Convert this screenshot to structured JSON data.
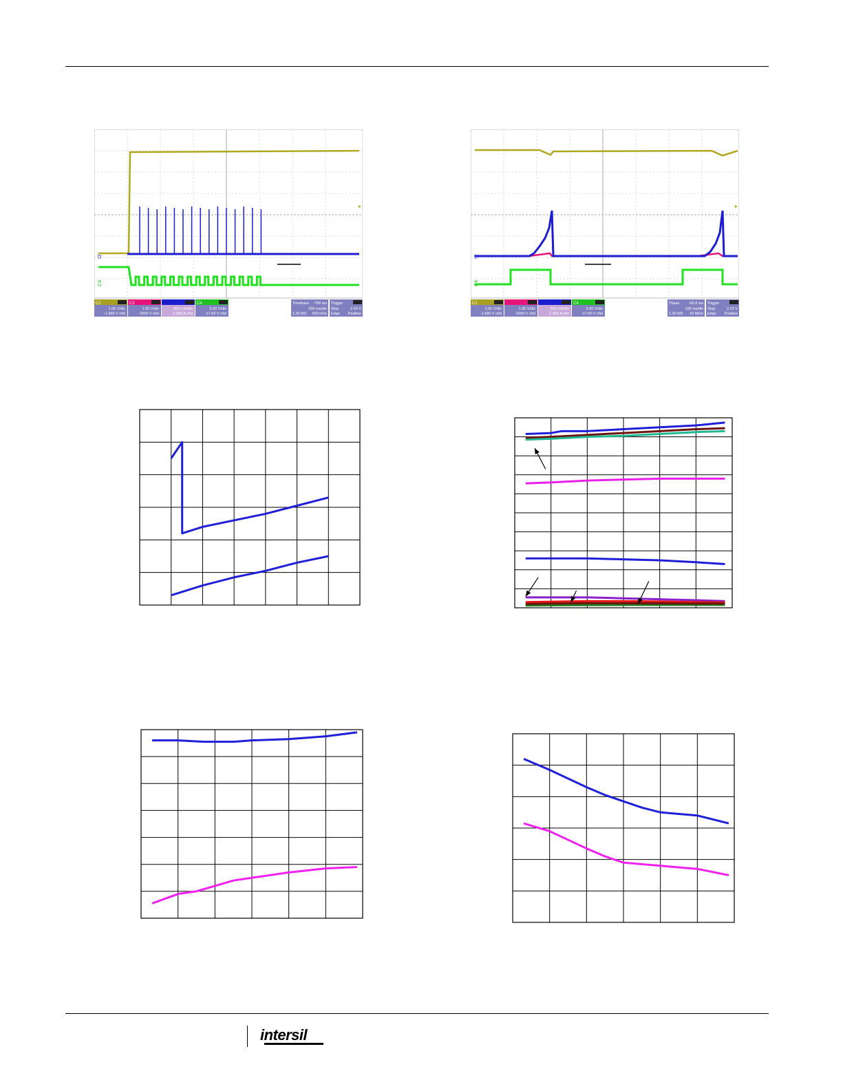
{
  "footer": {
    "logo_text": "intersil"
  },
  "scopes": [
    {
      "id": "scope-left",
      "channels": [
        {
          "tag": "C1",
          "tag_color": "#a8a020",
          "scale": "1.00 V/div",
          "offset": "-1.990 V ofst"
        },
        {
          "tag": "C2",
          "tag_color": "#e8147c",
          "scale": "1.00 V/div",
          "offset": "-2000 V ofst"
        },
        {
          "tag": "",
          "tag_color": "#1c1cd0",
          "scale": "500 mA/div",
          "offset": "-1.000 A ofst"
        },
        {
          "tag": "C4",
          "tag_color": "#20c020",
          "scale": "5.00 V/div",
          "offset": "-17.60 V ofst"
        }
      ],
      "timebase": {
        "label": "Timebase",
        "delay": "-756 ms",
        "scale": "200 ms/div",
        "points": "1.00 MS",
        "rate": "500 kS/s"
      },
      "trigger": {
        "label": "Trigger",
        "mode": "Stop",
        "level": "2.24 V",
        "type": "Edge",
        "slope": "Positive"
      }
    },
    {
      "id": "scope-right",
      "channels": [
        {
          "tag": "C1",
          "tag_color": "#a8a020",
          "scale": "1.00 V/div",
          "offset": "-1.990 V ofst"
        },
        {
          "tag": "",
          "tag_color": "#e8147c",
          "scale": "1.00 V/div",
          "offset": "-2000 V ofst"
        },
        {
          "tag": "",
          "tag_color": "#1c1cd0",
          "scale": "500 mA/div",
          "offset": "-1.000 A ofst"
        },
        {
          "tag": "C4",
          "tag_color": "#20c020",
          "scale": "5.00 V/div",
          "offset": "-17.60 V ofst"
        }
      ],
      "timebase": {
        "label": "Tbase",
        "delay": "-55.8 ms",
        "scale": "100 ms/div",
        "points": "1.00 MS",
        "rate": "10 MS/s"
      },
      "trigger": {
        "label": "Trigger",
        "mode": "Stop",
        "level": "2.24 V",
        "type": "Edge",
        "slope": "Positive"
      }
    }
  ],
  "chart_data": [
    {
      "type": "line",
      "id": "chart-mid-left",
      "grid": true,
      "xlim": [
        0,
        7
      ],
      "ylim": [
        0,
        6
      ],
      "series": [
        {
          "color": "#1f1fd8",
          "points": [
            [
              1,
              4.5
            ],
            [
              1.35,
              5
            ],
            [
              1.35,
              2.2
            ],
            [
              2,
              2.4
            ],
            [
              3,
              2.6
            ],
            [
              4,
              2.8
            ],
            [
              5,
              3.05
            ],
            [
              6,
              3.3
            ]
          ]
        },
        {
          "color": "#1f1fd8",
          "points": [
            [
              1,
              0.3
            ],
            [
              2,
              0.6
            ],
            [
              3,
              0.85
            ],
            [
              4,
              1.05
            ],
            [
              5,
              1.3
            ],
            [
              6,
              1.5
            ]
          ]
        }
      ]
    },
    {
      "type": "line",
      "id": "chart-mid-right",
      "grid": true,
      "xlim": [
        0,
        6
      ],
      "ylim": [
        0,
        10
      ],
      "series": [
        {
          "color": "#1f1fd8",
          "points": [
            [
              0.3,
              9.15
            ],
            [
              1,
              9.2
            ],
            [
              1.3,
              9.3
            ],
            [
              2,
              9.3
            ],
            [
              3,
              9.4
            ],
            [
              4,
              9.5
            ],
            [
              5,
              9.6
            ],
            [
              5.8,
              9.75
            ]
          ]
        },
        {
          "color": "#6b1410",
          "points": [
            [
              0.3,
              8.95
            ],
            [
              1,
              9.0
            ],
            [
              2,
              9.1
            ],
            [
              3,
              9.2
            ],
            [
              4,
              9.3
            ],
            [
              5,
              9.4
            ],
            [
              5.8,
              9.45
            ]
          ]
        },
        {
          "color": "#20b890",
          "points": [
            [
              0.3,
              8.85
            ],
            [
              1,
              8.9
            ],
            [
              2,
              9.0
            ],
            [
              3,
              9.05
            ],
            [
              4,
              9.15
            ],
            [
              5,
              9.25
            ],
            [
              5.8,
              9.3
            ]
          ]
        },
        {
          "color": "#e820e8",
          "points": [
            [
              0.3,
              6.55
            ],
            [
              1,
              6.6
            ],
            [
              2,
              6.7
            ],
            [
              3,
              6.75
            ],
            [
              4,
              6.8
            ],
            [
              5,
              6.8
            ],
            [
              5.8,
              6.8
            ]
          ]
        },
        {
          "color": "#1f1fd8",
          "points": [
            [
              0.3,
              2.6
            ],
            [
              1,
              2.6
            ],
            [
              2,
              2.6
            ],
            [
              3,
              2.55
            ],
            [
              4,
              2.5
            ],
            [
              5,
              2.4
            ],
            [
              5.8,
              2.3
            ]
          ]
        },
        {
          "color": "#8a20c8",
          "points": [
            [
              0.3,
              0.55
            ],
            [
              1,
              0.55
            ],
            [
              2,
              0.55
            ],
            [
              3,
              0.5
            ],
            [
              4,
              0.45
            ],
            [
              5,
              0.4
            ],
            [
              5.8,
              0.35
            ]
          ]
        },
        {
          "color": "#e81414",
          "points": [
            [
              0.3,
              0.3
            ],
            [
              1,
              0.32
            ],
            [
              2,
              0.35
            ],
            [
              3,
              0.35
            ],
            [
              4,
              0.33
            ],
            [
              5,
              0.3
            ],
            [
              5.8,
              0.28
            ]
          ]
        },
        {
          "color": "#208020",
          "points": [
            [
              0.3,
              0.12
            ],
            [
              1,
              0.13
            ],
            [
              2,
              0.14
            ],
            [
              3,
              0.15
            ],
            [
              4,
              0.15
            ],
            [
              5,
              0.15
            ],
            [
              5.8,
              0.15
            ]
          ]
        },
        {
          "color": "#6b1410",
          "points": [
            [
              0.3,
              0.2
            ],
            [
              1,
              0.22
            ],
            [
              2,
              0.24
            ],
            [
              3,
              0.24
            ],
            [
              4,
              0.23
            ],
            [
              5,
              0.22
            ],
            [
              5.8,
              0.22
            ]
          ]
        }
      ],
      "arrows": [
        {
          "from": [
            0.85,
            7.3
          ],
          "to": [
            0.55,
            8.4
          ]
        },
        {
          "from": [
            0.65,
            1.6
          ],
          "to": [
            0.3,
            0.6
          ]
        },
        {
          "from": [
            1.7,
            0.9
          ],
          "to": [
            1.55,
            0.3
          ]
        },
        {
          "from": [
            3.7,
            1.4
          ],
          "to": [
            3.4,
            0.2
          ]
        }
      ]
    },
    {
      "type": "line",
      "id": "chart-bottom-left",
      "grid": true,
      "xlim": [
        0,
        6
      ],
      "ylim": [
        0,
        7
      ],
      "series": [
        {
          "color": "#1f1fd8",
          "points": [
            [
              0.3,
              6.6
            ],
            [
              1,
              6.6
            ],
            [
              1.7,
              6.55
            ],
            [
              2.5,
              6.55
            ],
            [
              3,
              6.6
            ],
            [
              4,
              6.65
            ],
            [
              5,
              6.75
            ],
            [
              5.85,
              6.9
            ]
          ]
        },
        {
          "color": "#f020f0",
          "points": [
            [
              0.3,
              0.55
            ],
            [
              1,
              0.9
            ],
            [
              1.5,
              1.0
            ],
            [
              2,
              1.2
            ],
            [
              2.5,
              1.4
            ],
            [
              3,
              1.5
            ],
            [
              4,
              1.7
            ],
            [
              5,
              1.85
            ],
            [
              5.85,
              1.9
            ]
          ]
        }
      ]
    },
    {
      "type": "line",
      "id": "chart-bottom-right",
      "grid": true,
      "xlim": [
        0,
        6
      ],
      "ylim": [
        0,
        6
      ],
      "series": [
        {
          "color": "#1f1fd8",
          "points": [
            [
              0.3,
              5.2
            ],
            [
              1,
              4.85
            ],
            [
              2,
              4.3
            ],
            [
              2.5,
              4.05
            ],
            [
              3,
              3.85
            ],
            [
              3.5,
              3.65
            ],
            [
              4,
              3.5
            ],
            [
              4.5,
              3.45
            ],
            [
              5,
              3.4
            ],
            [
              5.85,
              3.15
            ]
          ]
        },
        {
          "color": "#f020f0",
          "points": [
            [
              0.3,
              3.15
            ],
            [
              1,
              2.9
            ],
            [
              2,
              2.35
            ],
            [
              2.5,
              2.1
            ],
            [
              3,
              1.9
            ],
            [
              3.5,
              1.85
            ],
            [
              4,
              1.8
            ],
            [
              4.5,
              1.75
            ],
            [
              5,
              1.7
            ],
            [
              5.85,
              1.5
            ]
          ]
        }
      ]
    }
  ]
}
